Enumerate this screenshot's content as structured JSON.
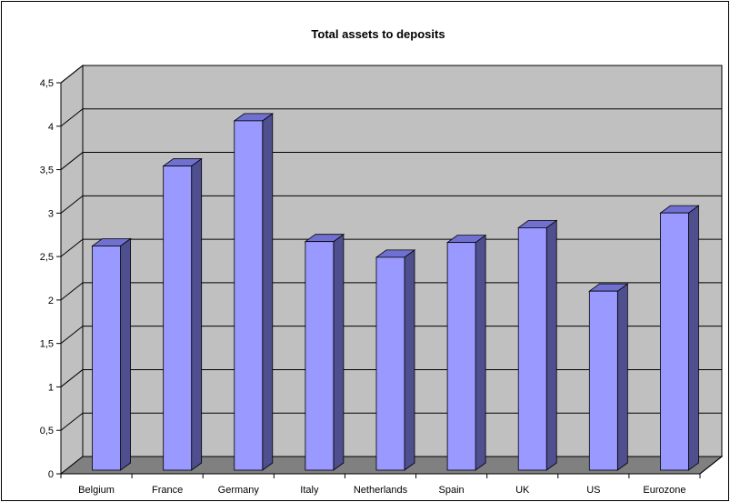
{
  "chart_data": {
    "type": "bar",
    "title": "Total assets to deposits",
    "xlabel": "",
    "ylabel": "",
    "categories": [
      "Belgium",
      "France",
      "Germany",
      "Italy",
      "Netherlands",
      "Spain",
      "UK",
      "US",
      "Eurozone"
    ],
    "values": [
      2.58,
      3.5,
      4.02,
      2.63,
      2.45,
      2.62,
      2.79,
      2.06,
      2.96
    ],
    "ylim": [
      0,
      4.5
    ],
    "yticks": [
      "0",
      "0,5",
      "1",
      "1,5",
      "2",
      "2,5",
      "3",
      "3,5",
      "4",
      "4,5"
    ],
    "ytick_values": [
      0,
      0.5,
      1,
      1.5,
      2,
      2.5,
      3,
      3.5,
      4,
      4.5
    ],
    "grid": true,
    "legend": "none",
    "style": "3d",
    "colors": {
      "bar_front": "#9999ff",
      "bar_top": "#7070d0",
      "bar_side": "#4f4f8f",
      "wall": "#c0c0c0",
      "floor": "#808080"
    }
  }
}
